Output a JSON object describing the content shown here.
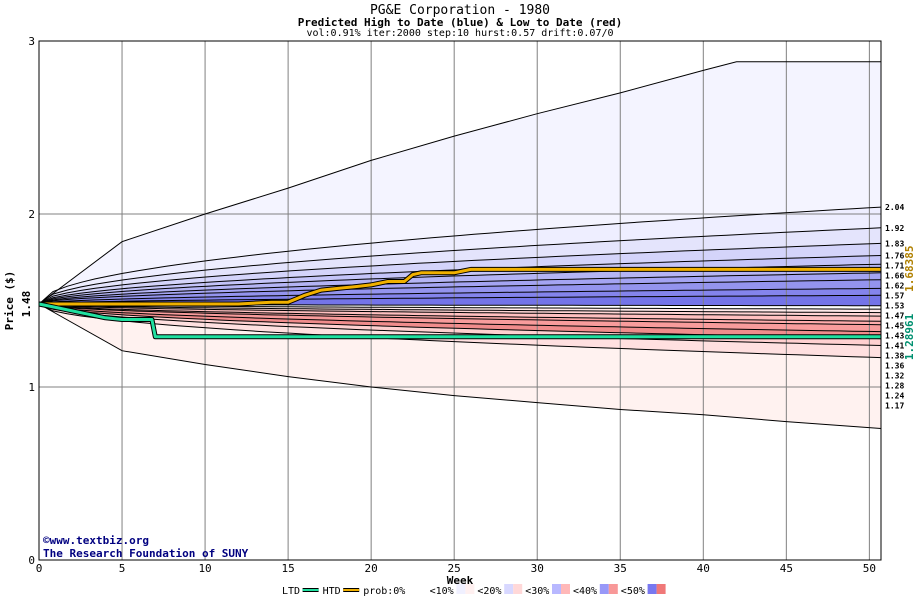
{
  "header": {
    "title": "PG&E Corporation - 1980",
    "subtitle": "Predicted High to Date (blue) &  Low to Date (red)",
    "params": "vol:0.91% iter:2000 step:10 hurst:0.57 drift:0.07/0"
  },
  "credits": {
    "line1": "©www.textbiz.org",
    "line2": "The Research Foundation of SUNY"
  },
  "chart_data": {
    "type": "area",
    "title": "PG&E Corporation - 1980",
    "subtitle": "Predicted High to Date (blue) &  Low to Date (red)",
    "xlabel": "Week",
    "ylabel": "Price ($)",
    "xlim": [
      0,
      50.7
    ],
    "ylim": [
      0,
      3
    ],
    "x_ticks": [
      0,
      5,
      10,
      15,
      20,
      25,
      30,
      35,
      40,
      45,
      50
    ],
    "y_ticks": [
      0,
      1,
      2,
      3
    ],
    "grid": true,
    "start_price": 1.48,
    "start_price_label": "1.48",
    "bands_high": [
      2.04,
      1.92,
      1.83,
      1.76,
      1.71,
      1.66,
      1.62,
      1.57,
      1.53,
      1.47
    ],
    "bands_low": [
      1.45,
      1.43,
      1.41,
      1.38,
      1.36,
      1.32,
      1.28,
      1.24,
      1.17
    ],
    "end_labels": [
      "2.04",
      "1.92",
      "1.83",
      "1.76",
      "1.71",
      "1.66",
      "1.62",
      "1.57",
      "1.53",
      "1.47",
      "1.45",
      "1.43",
      "1.41",
      "1.38",
      "1.36",
      "1.32",
      "1.28",
      "1.24",
      "1.17"
    ],
    "outer_envelope": {
      "upper": {
        "x": [
          0,
          5,
          10,
          15,
          20,
          25,
          30,
          35,
          40,
          42,
          50.7
        ],
        "y": [
          1.48,
          1.84,
          2.0,
          2.15,
          2.31,
          2.45,
          2.58,
          2.7,
          2.83,
          2.88,
          2.88
        ]
      },
      "lower": {
        "x": [
          0,
          5,
          10,
          15,
          20,
          25,
          30,
          35,
          40,
          45,
          50.7
        ],
        "y": [
          1.48,
          1.21,
          1.13,
          1.06,
          1.0,
          0.95,
          0.91,
          0.87,
          0.84,
          0.8,
          0.76
        ]
      }
    },
    "series": [
      {
        "name": "HTD",
        "color": "#f0b000",
        "x": [
          0,
          2,
          4,
          6,
          8,
          10,
          12,
          14,
          15,
          15.5,
          16,
          17,
          18,
          19,
          20,
          21,
          22,
          22.5,
          23,
          24,
          25,
          25.5,
          26,
          28,
          30,
          35,
          40,
          45,
          50.7
        ],
        "y": [
          1.48,
          1.48,
          1.48,
          1.48,
          1.48,
          1.48,
          1.48,
          1.49,
          1.49,
          1.51,
          1.53,
          1.56,
          1.57,
          1.58,
          1.59,
          1.61,
          1.61,
          1.65,
          1.66,
          1.66,
          1.66,
          1.67,
          1.68,
          1.68,
          1.68,
          1.68,
          1.68,
          1.68,
          1.68
        ]
      },
      {
        "name": "LTD",
        "color": "#20e0a0",
        "x": [
          0,
          1,
          2,
          3,
          4,
          5,
          6,
          6.8,
          7,
          10,
          20,
          30,
          40,
          50.7
        ],
        "y": [
          1.48,
          1.46,
          1.44,
          1.42,
          1.4,
          1.39,
          1.39,
          1.39,
          1.29,
          1.29,
          1.29,
          1.29,
          1.29,
          1.29
        ]
      }
    ],
    "right_labels": [
      {
        "text": "1.68385",
        "color": "#b08000"
      },
      {
        "text": "1.28961",
        "color": "#009070"
      }
    ],
    "legend": {
      "position": "bottom",
      "items": [
        {
          "label": "LTD",
          "type": "line",
          "color": "#20e0a0"
        },
        {
          "label": "HTD",
          "type": "line",
          "color": "#f0b000"
        },
        {
          "label": "prob:0%",
          "type": "swatch",
          "colors": [
            "#ffffff",
            "#ffffff"
          ]
        },
        {
          "label": "<10%",
          "type": "swatch",
          "colors": [
            "#f0f0ff",
            "#fff0f0"
          ]
        },
        {
          "label": "<20%",
          "type": "swatch",
          "colors": [
            "#d8d8ff",
            "#ffd8d8"
          ]
        },
        {
          "label": "<30%",
          "type": "swatch",
          "colors": [
            "#b8b8ff",
            "#ffb8b8"
          ]
        },
        {
          "label": "<40%",
          "type": "swatch",
          "colors": [
            "#9898f8",
            "#f89898"
          ]
        },
        {
          "label": "<50%",
          "type": "swatch",
          "colors": [
            "#7878f0",
            "#f07878"
          ]
        }
      ]
    },
    "colors": {
      "high_bands": [
        "#eeeeff",
        "#e4e4fc",
        "#d4d4fa",
        "#c4c4f8",
        "#b4b4f4",
        "#a4a4f2",
        "#9494ee",
        "#8484ec",
        "#7474e8",
        "#f4f4ff"
      ],
      "low_bands": [
        "#ffe8e8",
        "#ffd4d4",
        "#ffc0c0",
        "#ffacac",
        "#f89c9c",
        "#f08c8c",
        "#ffd0d0",
        "#ffe0e0",
        "#fff4f0"
      ]
    }
  }
}
